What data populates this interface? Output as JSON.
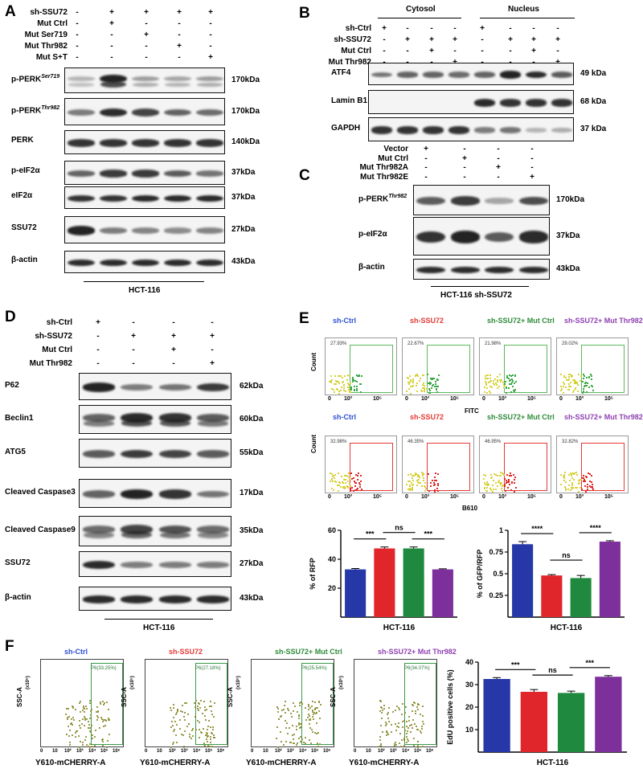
{
  "panels": {
    "A": {
      "letter": "A",
      "conditions": [
        {
          "name": "sh-SSU72",
          "signs": [
            "-",
            "+",
            "+",
            "+",
            "+"
          ]
        },
        {
          "name": "Mut Ctrl",
          "signs": [
            "-",
            "+",
            "-",
            "-",
            "-"
          ]
        },
        {
          "name": "Mut Ser719",
          "signs": [
            "-",
            "-",
            "+",
            "-",
            "-"
          ]
        },
        {
          "name": "Mut Thr982",
          "signs": [
            "-",
            "-",
            "-",
            "+",
            "-"
          ]
        },
        {
          "name": "Mut S+T",
          "signs": [
            "-",
            "-",
            "-",
            "-",
            "+"
          ]
        }
      ],
      "rows": [
        {
          "name": "p-PERK",
          "sup": "Ser719",
          "kda": "170kDa"
        },
        {
          "name": "p-PERK",
          "sup": "Thr982",
          "kda": "170kDa"
        },
        {
          "name": "PERK",
          "sup": "",
          "kda": "140kDa"
        },
        {
          "name": "p-eIF2α",
          "sup": "",
          "kda": "37kDa"
        },
        {
          "name": "eIF2α",
          "sup": "",
          "kda": "37kDa"
        },
        {
          "name": "SSU72",
          "sup": "",
          "kda": "27kDa"
        },
        {
          "name": "β-actin",
          "sup": "",
          "kda": "43kDa"
        }
      ],
      "cell_line": "HCT-116"
    },
    "B": {
      "letter": "B",
      "groups": [
        "Cytosol",
        "Nucleus"
      ],
      "conditions": [
        {
          "name": "sh-Ctrl",
          "signs": [
            "+",
            "-",
            "-",
            "-",
            "+",
            "-",
            "-",
            "-"
          ]
        },
        {
          "name": "sh-SSU72",
          "signs": [
            "-",
            "+",
            "+",
            "+",
            "-",
            "+",
            "+",
            "+"
          ]
        },
        {
          "name": "Mut Ctrl",
          "signs": [
            "-",
            "-",
            "+",
            "-",
            "-",
            "-",
            "+",
            "-"
          ]
        },
        {
          "name": "Mut Thr982",
          "signs": [
            "-",
            "-",
            "-",
            "+",
            "-",
            "-",
            "-",
            "+"
          ]
        }
      ],
      "rows": [
        {
          "name": "ATF4",
          "kda": "49 kDa"
        },
        {
          "name": "Lamin B1",
          "kda": "68 kDa"
        },
        {
          "name": "GAPDH",
          "kda": "37 kDa"
        }
      ]
    },
    "C": {
      "letter": "C",
      "conditions": [
        {
          "name": "Vector",
          "signs": [
            "+",
            "-",
            "-",
            "-"
          ]
        },
        {
          "name": "Mut Ctrl",
          "signs": [
            "-",
            "+",
            "-",
            "-"
          ]
        },
        {
          "name": "Mut Thr982A",
          "signs": [
            "-",
            "-",
            "+",
            "-"
          ]
        },
        {
          "name": "Mut Thr982E",
          "signs": [
            "-",
            "-",
            "-",
            "+"
          ]
        }
      ],
      "rows": [
        {
          "name": "p-PERK",
          "sup": "Thr982",
          "kda": "170kDa"
        },
        {
          "name": "p-eIF2α",
          "sup": "",
          "kda": "37kDa"
        },
        {
          "name": "β-actin",
          "sup": "",
          "kda": "43kDa"
        }
      ],
      "cell_line": "HCT-116 sh-SSU72"
    },
    "D": {
      "letter": "D",
      "conditions": [
        {
          "name": "sh-Ctrl",
          "signs": [
            "+",
            "-",
            "-",
            "-"
          ]
        },
        {
          "name": "sh-SSU72",
          "signs": [
            "-",
            "+",
            "+",
            "+"
          ]
        },
        {
          "name": "Mut Ctrl",
          "signs": [
            "-",
            "-",
            "+",
            "-"
          ]
        },
        {
          "name": "Mut Thr982",
          "signs": [
            "-",
            "-",
            "-",
            "+"
          ]
        }
      ],
      "rows": [
        {
          "name": "P62",
          "kda": "62kDa"
        },
        {
          "name": "Beclin1",
          "kda": "60kDa"
        },
        {
          "name": "ATG5",
          "kda": "55kDa"
        },
        {
          "name": "Cleaved Caspase3",
          "kda": "17kDa"
        },
        {
          "name": "Cleaved Caspase9",
          "kda": "35kDa"
        },
        {
          "name": "SSU72",
          "kda": "27kDa"
        },
        {
          "name": "β-actin",
          "kda": "43kDa"
        }
      ],
      "cell_line": "HCT-116"
    },
    "E": {
      "letter": "E",
      "groups": [
        "sh-Ctrl",
        "sh-SSU72",
        "sh-SSU72+ Mut Ctrl",
        "sh-SSU72+ Mut Thr982"
      ],
      "group_colors": [
        "#2e4fd6",
        "#e53935",
        "#2e8b3a",
        "#8e3fb0"
      ],
      "fitc_pcts": [
        "27.93%",
        "22.67%",
        "21.98%",
        "29.02%"
      ],
      "b610_pcts": [
        "32.98%",
        "46.35%",
        "46.95%",
        "32.82%"
      ],
      "flow_y_label": "Count",
      "flow_x_ticks": [
        "0",
        "10³",
        "10⁵"
      ],
      "fitc_label": "FITC",
      "b610_label": "B610"
    },
    "F": {
      "letter": "F",
      "groups": [
        "sh-Ctrl",
        "sh-SSU72",
        "sh-SSU72+ Mut Ctrl",
        "sh-SSU72+ Mut Thr982"
      ],
      "group_colors": [
        "#2e4fd6",
        "#e53935",
        "#2e8b3a",
        "#8e3fb0"
      ],
      "gate_pcts": [
        "P6(33.25%)",
        "P6(27.18%)",
        "P6(25.54%)",
        "P6(34.07%)"
      ],
      "y_label": "SSC-A",
      "y_unit": "(x10⁵)",
      "x_label": "Y610-mCHERRY-A",
      "x_ticks": [
        "0",
        "10",
        "10²",
        "10³",
        "10⁴",
        "10⁵",
        "10⁶"
      ]
    }
  },
  "chart_data": [
    {
      "type": "bar",
      "panel": "E",
      "categories": [
        "sh-Ctrl",
        "sh-SSU72",
        "sh-SSU72+ Mut Ctrl",
        "sh-SSU72+ Mut Thr982"
      ],
      "values": [
        33,
        47.5,
        47.5,
        33
      ],
      "errors": [
        0.6,
        1.0,
        1.0,
        0.4
      ],
      "ylim": [
        0,
        60
      ],
      "yticks": [
        20,
        40,
        60
      ],
      "ylabel": "% of RFP",
      "xlabel": "HCT-116",
      "colors": [
        "#2637a8",
        "#e0262b",
        "#1f8a3f",
        "#7d2f9c"
      ],
      "significance": [
        {
          "from": 0,
          "to": 1,
          "label": "***"
        },
        {
          "from": 1,
          "to": 2,
          "label": "ns"
        },
        {
          "from": 2,
          "to": 3,
          "label": "***"
        }
      ]
    },
    {
      "type": "bar",
      "panel": "E",
      "categories": [
        "sh-Ctrl",
        "sh-SSU72",
        "sh-SSU72+ Mut Ctrl",
        "sh-SSU72+ Mut Thr982"
      ],
      "values": [
        0.84,
        0.48,
        0.45,
        0.87
      ],
      "errors": [
        0.03,
        0.01,
        0.03,
        0.01
      ],
      "ylim": [
        0,
        1.0
      ],
      "yticks": [
        0.25,
        0.5,
        0.75,
        1.0
      ],
      "ylabel": "% of GFP/RFP",
      "xlabel": "HCT-116",
      "colors": [
        "#2637a8",
        "#e0262b",
        "#1f8a3f",
        "#7d2f9c"
      ],
      "significance": [
        {
          "from": 0,
          "to": 1,
          "label": "****"
        },
        {
          "from": 1,
          "to": 2,
          "label": "ns"
        },
        {
          "from": 2,
          "to": 3,
          "label": "****"
        }
      ]
    },
    {
      "type": "bar",
      "panel": "F",
      "categories": [
        "sh-Ctrl",
        "sh-SSU72",
        "sh-SSU72+ Mut Ctrl",
        "sh-SSU72+ Mut Thr982"
      ],
      "values": [
        32.5,
        26.8,
        26.3,
        33.5
      ],
      "errors": [
        0.6,
        1.0,
        0.8,
        0.5
      ],
      "ylim": [
        0,
        40
      ],
      "yticks": [
        10,
        20,
        30,
        40
      ],
      "ylabel": "EdU positive cells (%)",
      "xlabel": "HCT-116",
      "colors": [
        "#2637a8",
        "#e0262b",
        "#1f8a3f",
        "#7d2f9c"
      ],
      "significance": [
        {
          "from": 0,
          "to": 1,
          "label": "***"
        },
        {
          "from": 1,
          "to": 2,
          "label": "ns"
        },
        {
          "from": 2,
          "to": 3,
          "label": "***"
        }
      ]
    }
  ]
}
